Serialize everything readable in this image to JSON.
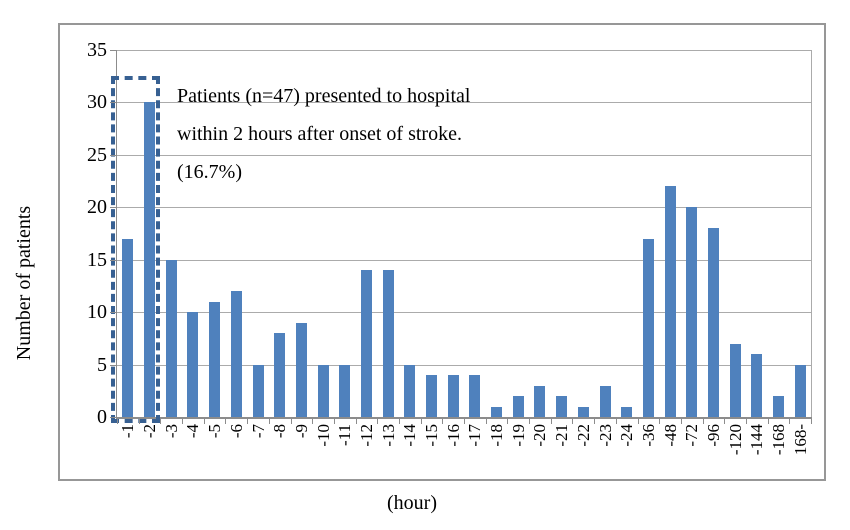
{
  "chart_data": {
    "type": "bar",
    "title": "",
    "xlabel": "(hour)",
    "ylabel": "Number of patients",
    "categories": [
      "-1",
      "-2",
      "-3",
      "-4",
      "-5",
      "-6",
      "-7",
      "-8",
      "-9",
      "-10",
      "-11",
      "-12",
      "-13",
      "-14",
      "-15",
      "-16",
      "-17",
      "-18",
      "-19",
      "-20",
      "-21",
      "-22",
      "-23",
      "-24",
      "-36",
      "-48",
      "-72",
      "-96",
      "-120",
      "-144",
      "-168",
      "168-"
    ],
    "values": [
      17,
      30,
      15,
      10,
      11,
      12,
      5,
      8,
      9,
      5,
      5,
      14,
      14,
      5,
      4,
      4,
      4,
      1,
      2,
      3,
      2,
      1,
      3,
      1,
      17,
      22,
      20,
      18,
      7,
      6,
      2,
      5
    ],
    "ylim": [
      0,
      35
    ],
    "ytick_step": 5,
    "grid": true,
    "legend_position": "none",
    "bar_color": "#4F81BD"
  },
  "annotation": {
    "line1": "Patients (n=47) presented to hospital",
    "line2": "within 2 hours after onset of stroke.",
    "line3": "(16.7%)"
  },
  "highlight_box": {
    "categories_covered": [
      "-1",
      "-2"
    ],
    "top_value": 32.5,
    "color": "#376092"
  },
  "colors": {
    "bar": "#4F81BD",
    "highlight": "#376092",
    "gridline": "#ababab",
    "axis": "#8c8c8c",
    "frame_border": "#979797",
    "text": "#000000"
  }
}
